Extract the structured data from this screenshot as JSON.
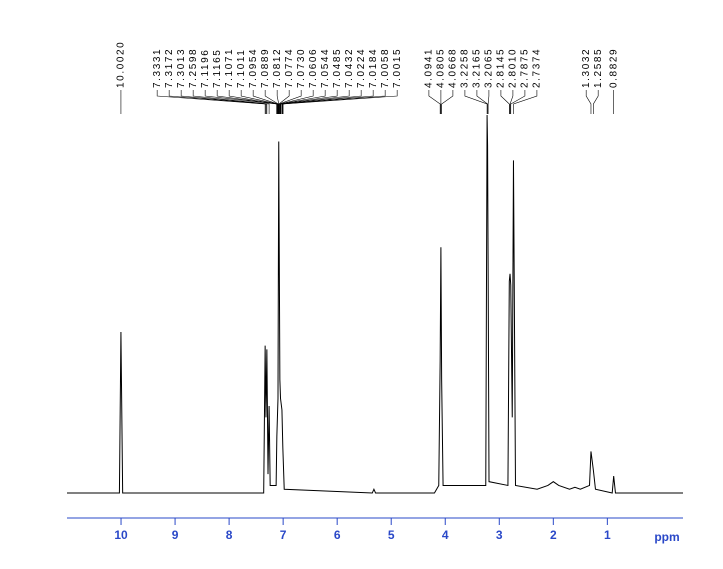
{
  "chart_data": {
    "type": "nmr",
    "x_label": "ppm",
    "xlim": [
      11.0,
      -0.4
    ],
    "xticks": [
      10,
      9,
      8,
      7,
      6,
      5,
      4,
      3,
      2,
      1
    ],
    "ylim": [
      0,
      100
    ],
    "color": "#000000",
    "axis_color": "#2a48c8",
    "spectrum": {
      "x": [
        11.0,
        10.03,
        10.002,
        9.97,
        7.36,
        7.3331,
        7.318,
        7.3013,
        7.28,
        7.2598,
        7.24,
        7.13,
        7.1165,
        7.0954,
        7.0812,
        7.0774,
        7.0606,
        7.0485,
        7.0224,
        7.0058,
        6.98,
        5.35,
        5.32,
        5.29,
        4.2,
        4.12,
        4.0941,
        4.0805,
        4.0668,
        4.04,
        3.25,
        3.2258,
        3.2165,
        3.2065,
        3.19,
        2.84,
        2.8145,
        2.801,
        2.7875,
        2.76,
        2.7374,
        2.7,
        2.3,
        2.1,
        2.0,
        1.9,
        1.7,
        1.6,
        1.5,
        1.33,
        1.3032,
        1.2585,
        1.22,
        0.91,
        0.8829,
        0.85,
        -0.4
      ],
      "y": [
        0,
        0,
        42.6,
        0,
        0,
        39,
        20,
        38,
        5,
        23,
        2,
        2,
        15,
        25,
        93,
        80,
        30,
        25,
        22,
        12,
        1,
        0,
        1,
        0,
        0,
        2,
        35,
        65,
        30,
        2,
        2,
        100,
        92,
        60,
        3,
        2,
        56,
        58,
        55,
        20,
        88,
        2,
        1,
        2,
        3,
        2,
        1,
        1.5,
        1,
        2,
        11,
        6,
        1,
        0,
        4.5,
        0,
        0
      ]
    },
    "peaks": {
      "values": [
        10.002,
        7.3331,
        7.3172,
        7.3013,
        7.2598,
        7.1196,
        7.1165,
        7.1071,
        7.1011,
        7.0954,
        7.0889,
        7.0812,
        7.0774,
        7.073,
        7.0606,
        7.0544,
        7.0485,
        7.0432,
        7.0224,
        7.0184,
        7.0058,
        7.0015,
        4.0941,
        4.0805,
        4.0668,
        3.2258,
        3.2165,
        3.2065,
        2.8145,
        2.801,
        2.7875,
        2.7374,
        1.3032,
        1.2585,
        0.8829
      ],
      "value_labels": [
        "10.0020",
        "7.3331",
        "7.3172",
        "7.3013",
        "7.2598",
        "7.1196",
        "7.1165",
        "7.1071",
        "7.1011",
        "7.0954",
        "7.0889",
        "7.0812",
        "7.0774",
        "7.0730",
        "7.0606",
        "7.0544",
        "7.0485",
        "7.0432",
        "7.0224",
        "7.0184",
        "7.0058",
        "7.0015",
        "4.0941",
        "4.0805",
        "4.0668",
        "3.2258",
        "3.2165",
        "3.2065",
        "2.8145",
        "2.8010",
        "2.7875",
        "2.7374",
        "1.3032",
        "1.2585",
        "0.8829"
      ]
    }
  }
}
